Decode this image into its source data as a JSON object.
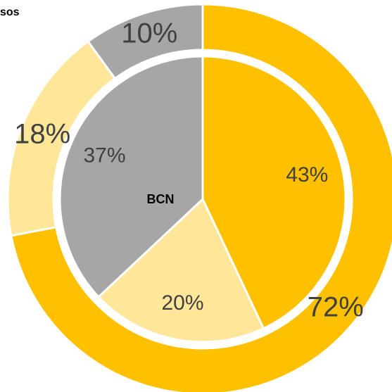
{
  "chart_data": [
    {
      "type": "donut",
      "title": "sos",
      "values": [
        72,
        18,
        10
      ],
      "value_labels": [
        "72%",
        "18%",
        "10%"
      ],
      "colors": [
        "#FFC000",
        "#FFE699",
        "#A6A6A6"
      ]
    },
    {
      "type": "pie",
      "title": "BCN",
      "values": [
        43,
        20,
        37
      ],
      "value_labels": [
        "43%",
        "20%",
        "37%"
      ],
      "colors": [
        "#FFC000",
        "#FFE699",
        "#A6A6A6"
      ]
    }
  ]
}
